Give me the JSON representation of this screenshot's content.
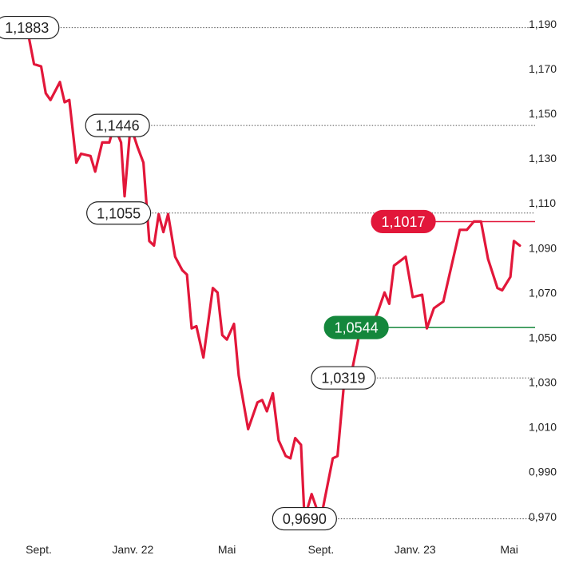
{
  "chart_data": {
    "type": "line",
    "title": "",
    "xlabel": "",
    "ylabel": "",
    "ylim": [
      0.966,
      1.1935
    ],
    "y_ticks": [
      "1,190",
      "1,170",
      "1,150",
      "1,130",
      "1,110",
      "1,090",
      "1,070",
      "1,050",
      "1,030",
      "1,010",
      "0,990",
      "0,970"
    ],
    "y_tick_values": [
      1.19,
      1.17,
      1.15,
      1.13,
      1.11,
      1.09,
      1.07,
      1.05,
      1.03,
      1.01,
      0.99,
      0.97
    ],
    "x_ticks": [
      "Sept.",
      "Janv. 22",
      "Mai",
      "Sept.",
      "Janv. 23",
      "Mai"
    ],
    "x_tick_positions": [
      0.5,
      4.5,
      8.5,
      12.5,
      16.5,
      20.5
    ],
    "x_range": [
      -0.4,
      21.6
    ],
    "series": [
      {
        "color": "#e2173a",
        "points": [
          [
            0,
            1.1883
          ],
          [
            0.3,
            1.172
          ],
          [
            0.6,
            1.171
          ],
          [
            0.8,
            1.159
          ],
          [
            1.0,
            1.156
          ],
          [
            1.4,
            1.164
          ],
          [
            1.6,
            1.155
          ],
          [
            1.8,
            1.156
          ],
          [
            2.1,
            1.128
          ],
          [
            2.3,
            1.132
          ],
          [
            2.7,
            1.131
          ],
          [
            2.9,
            1.124
          ],
          [
            3.2,
            1.137
          ],
          [
            3.5,
            1.137
          ],
          [
            3.7,
            1.1446
          ],
          [
            4.0,
            1.137
          ],
          [
            4.15,
            1.113
          ],
          [
            4.4,
            1.1446
          ],
          [
            4.7,
            1.135
          ],
          [
            4.95,
            1.128
          ],
          [
            5.2,
            1.093
          ],
          [
            5.4,
            1.091
          ],
          [
            5.6,
            1.105
          ],
          [
            5.8,
            1.097
          ],
          [
            6.0,
            1.105
          ],
          [
            6.3,
            1.086
          ],
          [
            6.6,
            1.08
          ],
          [
            6.8,
            1.078
          ],
          [
            7.0,
            1.054
          ],
          [
            7.2,
            1.055
          ],
          [
            7.5,
            1.041
          ],
          [
            7.9,
            1.072
          ],
          [
            8.1,
            1.07
          ],
          [
            8.3,
            1.051
          ],
          [
            8.5,
            1.049
          ],
          [
            8.8,
            1.056
          ],
          [
            9.0,
            1.033
          ],
          [
            9.4,
            1.009
          ],
          [
            9.8,
            1.021
          ],
          [
            10.0,
            1.022
          ],
          [
            10.2,
            1.017
          ],
          [
            10.45,
            1.025
          ],
          [
            10.7,
            1.004
          ],
          [
            11.0,
            0.997
          ],
          [
            11.2,
            0.996
          ],
          [
            11.4,
            1.005
          ],
          [
            11.65,
            1.002
          ],
          [
            11.8,
            0.969
          ],
          [
            12.1,
            0.98
          ],
          [
            12.3,
            0.974
          ],
          [
            12.55,
            0.972
          ],
          [
            13.0,
            0.996
          ],
          [
            13.2,
            0.997
          ],
          [
            13.5,
            1.0319
          ],
          [
            13.7,
            1.029
          ],
          [
            14.1,
            1.05
          ],
          [
            14.4,
            1.052
          ],
          [
            14.6,
            1.054
          ],
          [
            14.9,
            1.061
          ],
          [
            15.2,
            1.07
          ],
          [
            15.4,
            1.065
          ],
          [
            15.6,
            1.082
          ],
          [
            16.1,
            1.086
          ],
          [
            16.4,
            1.068
          ],
          [
            16.8,
            1.069
          ],
          [
            17.0,
            1.054
          ],
          [
            17.3,
            1.063
          ],
          [
            17.7,
            1.066
          ],
          [
            18.4,
            1.098
          ],
          [
            18.7,
            1.098
          ],
          [
            19.0,
            1.1017
          ],
          [
            19.3,
            1.1017
          ],
          [
            19.6,
            1.085
          ],
          [
            20.0,
            1.072
          ],
          [
            20.2,
            1.071
          ],
          [
            20.55,
            1.077
          ],
          [
            20.7,
            1.093
          ],
          [
            20.95,
            1.091
          ]
        ]
      }
    ],
    "annotations": [
      {
        "label": "1,1883",
        "value": 1.1883,
        "style": "outline",
        "at_x": 0.0,
        "line": "dotted",
        "line_end_x": 21.6
      },
      {
        "label": "1,1446",
        "value": 1.1446,
        "style": "outline",
        "at_x": 3.85,
        "line": "dotted",
        "line_end_x": 21.6
      },
      {
        "label": "1,1055",
        "value": 1.1055,
        "style": "outline",
        "at_x": 3.9,
        "line": "dotted",
        "line_end_x": 21.6
      },
      {
        "label": "1,0319",
        "value": 1.0319,
        "style": "outline",
        "at_x": 13.45,
        "line": "dotted",
        "line_end_x": 21.6
      },
      {
        "label": "0,9690",
        "value": 0.969,
        "style": "outline",
        "at_x": 11.8,
        "line": "dotted",
        "line_end_x": 21.6
      },
      {
        "label": "1,1017",
        "value": 1.1017,
        "style": "filled",
        "color": "#e2173a",
        "at_x": 16.0,
        "line": "solid",
        "line_end_x": 21.6
      },
      {
        "label": "1,0544",
        "value": 1.0544,
        "style": "filled",
        "color": "#14873c",
        "at_x": 14.0,
        "line": "solid",
        "line_end_x": 21.6
      }
    ]
  }
}
